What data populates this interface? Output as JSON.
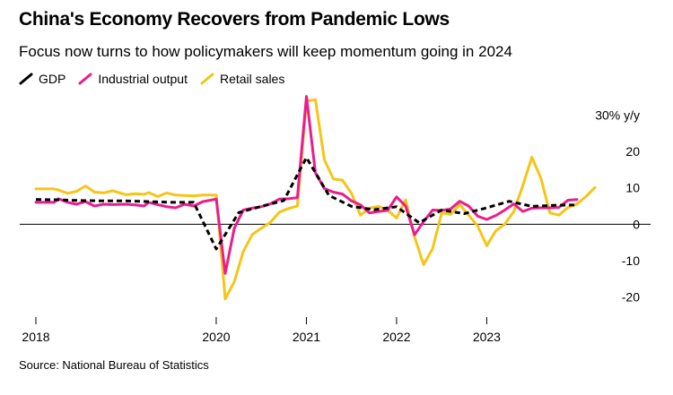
{
  "title": "China's Economy Recovers from Pandemic Lows",
  "subtitle": "Focus now turns to how policymakers will keep momentum going in 2024",
  "source": "Source: National Bureau of Statistics",
  "legend": [
    {
      "name": "GDP",
      "color": "#000000",
      "dashed": true
    },
    {
      "name": "Industrial output",
      "color": "#E91E8C",
      "dashed": false
    },
    {
      "name": "Retail sales",
      "color": "#F5C518",
      "dashed": false
    }
  ],
  "chart_data": {
    "type": "line",
    "xlabel": "",
    "ylabel": "% y/y",
    "ylim": [
      -25,
      35
    ],
    "xlim": [
      2018,
      2024.2
    ],
    "x_ticks": [
      {
        "value": 2018,
        "label": "2018"
      },
      {
        "value": 2020,
        "label": "2020"
      },
      {
        "value": 2021,
        "label": "2021"
      },
      {
        "value": 2022,
        "label": "2022"
      },
      {
        "value": 2023,
        "label": "2023"
      }
    ],
    "y_ticks": [
      {
        "value": 30,
        "label": "30% y/y"
      },
      {
        "value": 20,
        "label": "20"
      },
      {
        "value": 10,
        "label": "10"
      },
      {
        "value": 0,
        "label": "0"
      },
      {
        "value": -10,
        "label": "-10"
      },
      {
        "value": -20,
        "label": "-20"
      }
    ],
    "series": [
      {
        "name": "GDP",
        "color": "#000000",
        "style": "dashed",
        "points": [
          [
            2018.0,
            6.8
          ],
          [
            2018.25,
            6.7
          ],
          [
            2018.5,
            6.5
          ],
          [
            2018.75,
            6.4
          ],
          [
            2019.0,
            6.4
          ],
          [
            2019.25,
            6.2
          ],
          [
            2019.5,
            6.0
          ],
          [
            2019.75,
            6.0
          ],
          [
            2020.0,
            -6.8
          ],
          [
            2020.25,
            3.2
          ],
          [
            2020.5,
            4.9
          ],
          [
            2020.75,
            6.5
          ],
          [
            2021.0,
            18.3
          ],
          [
            2021.25,
            7.9
          ],
          [
            2021.5,
            4.9
          ],
          [
            2021.75,
            4.0
          ],
          [
            2022.0,
            4.8
          ],
          [
            2022.25,
            0.4
          ],
          [
            2022.5,
            3.9
          ],
          [
            2022.75,
            2.9
          ],
          [
            2023.0,
            4.5
          ],
          [
            2023.25,
            6.3
          ],
          [
            2023.5,
            4.9
          ],
          [
            2023.75,
            5.2
          ],
          [
            2024.0,
            5.3
          ]
        ]
      },
      {
        "name": "Industrial output",
        "color": "#E91E8C",
        "style": "solid",
        "points": [
          [
            2018.0,
            6.0
          ],
          [
            2018.1,
            6.0
          ],
          [
            2018.2,
            6.0
          ],
          [
            2018.25,
            7.0
          ],
          [
            2018.35,
            6.0
          ],
          [
            2018.45,
            5.5
          ],
          [
            2018.55,
            6.2
          ],
          [
            2018.65,
            5.0
          ],
          [
            2018.75,
            5.5
          ],
          [
            2018.85,
            5.4
          ],
          [
            2019.0,
            5.5
          ],
          [
            2019.1,
            5.3
          ],
          [
            2019.2,
            5.0
          ],
          [
            2019.25,
            6.0
          ],
          [
            2019.35,
            5.4
          ],
          [
            2019.45,
            4.8
          ],
          [
            2019.55,
            4.5
          ],
          [
            2019.65,
            5.5
          ],
          [
            2019.75,
            5.0
          ],
          [
            2019.85,
            6.2
          ],
          [
            2020.0,
            6.9
          ],
          [
            2020.1,
            -13.5
          ],
          [
            2020.2,
            -1.1
          ],
          [
            2020.3,
            3.9
          ],
          [
            2020.4,
            4.4
          ],
          [
            2020.5,
            4.8
          ],
          [
            2020.6,
            5.6
          ],
          [
            2020.7,
            6.9
          ],
          [
            2020.8,
            7.0
          ],
          [
            2020.9,
            7.3
          ],
          [
            2021.0,
            35.1
          ],
          [
            2021.1,
            14.1
          ],
          [
            2021.2,
            9.8
          ],
          [
            2021.3,
            8.8
          ],
          [
            2021.4,
            8.3
          ],
          [
            2021.5,
            6.4
          ],
          [
            2021.6,
            5.3
          ],
          [
            2021.7,
            3.1
          ],
          [
            2021.8,
            3.5
          ],
          [
            2021.9,
            3.8
          ],
          [
            2022.0,
            7.5
          ],
          [
            2022.1,
            5.0
          ],
          [
            2022.2,
            -2.9
          ],
          [
            2022.3,
            0.7
          ],
          [
            2022.4,
            3.9
          ],
          [
            2022.5,
            3.8
          ],
          [
            2022.6,
            4.2
          ],
          [
            2022.7,
            6.3
          ],
          [
            2022.8,
            5.0
          ],
          [
            2022.9,
            2.2
          ],
          [
            2023.0,
            1.3
          ],
          [
            2023.1,
            2.4
          ],
          [
            2023.2,
            3.9
          ],
          [
            2023.3,
            5.6
          ],
          [
            2023.4,
            3.5
          ],
          [
            2023.5,
            4.4
          ],
          [
            2023.6,
            4.5
          ],
          [
            2023.7,
            4.5
          ],
          [
            2023.8,
            4.6
          ],
          [
            2023.9,
            6.6
          ],
          [
            2024.0,
            6.8
          ]
        ]
      },
      {
        "name": "Retail sales",
        "color": "#F5C518",
        "style": "solid",
        "points": [
          [
            2018.0,
            9.7
          ],
          [
            2018.1,
            9.7
          ],
          [
            2018.2,
            9.7
          ],
          [
            2018.25,
            9.4
          ],
          [
            2018.35,
            8.5
          ],
          [
            2018.45,
            9.0
          ],
          [
            2018.55,
            10.5
          ],
          [
            2018.65,
            8.8
          ],
          [
            2018.75,
            8.6
          ],
          [
            2018.85,
            9.2
          ],
          [
            2019.0,
            8.1
          ],
          [
            2019.1,
            8.4
          ],
          [
            2019.2,
            8.2
          ],
          [
            2019.25,
            8.7
          ],
          [
            2019.35,
            7.6
          ],
          [
            2019.45,
            8.6
          ],
          [
            2019.55,
            8.0
          ],
          [
            2019.65,
            7.9
          ],
          [
            2019.75,
            7.8
          ],
          [
            2019.85,
            8.0
          ],
          [
            2020.0,
            8.0
          ],
          [
            2020.1,
            -20.5
          ],
          [
            2020.2,
            -15.8
          ],
          [
            2020.3,
            -7.5
          ],
          [
            2020.4,
            -2.8
          ],
          [
            2020.5,
            -1.1
          ],
          [
            2020.6,
            0.5
          ],
          [
            2020.7,
            3.3
          ],
          [
            2020.8,
            4.3
          ],
          [
            2020.9,
            5.0
          ],
          [
            2021.0,
            33.8
          ],
          [
            2021.1,
            34.2
          ],
          [
            2021.2,
            17.7
          ],
          [
            2021.3,
            12.4
          ],
          [
            2021.4,
            12.1
          ],
          [
            2021.5,
            8.5
          ],
          [
            2021.6,
            2.5
          ],
          [
            2021.7,
            4.4
          ],
          [
            2021.8,
            4.9
          ],
          [
            2021.9,
            3.9
          ],
          [
            2022.0,
            1.7
          ],
          [
            2022.1,
            6.7
          ],
          [
            2022.2,
            -3.5
          ],
          [
            2022.3,
            -11.1
          ],
          [
            2022.4,
            -6.7
          ],
          [
            2022.5,
            3.1
          ],
          [
            2022.6,
            2.7
          ],
          [
            2022.7,
            5.4
          ],
          [
            2022.8,
            2.5
          ],
          [
            2022.9,
            -0.5
          ],
          [
            2023.0,
            -5.9
          ],
          [
            2023.1,
            -1.8
          ],
          [
            2023.2,
            0.0
          ],
          [
            2023.3,
            3.5
          ],
          [
            2023.4,
            10.6
          ],
          [
            2023.5,
            18.4
          ],
          [
            2023.6,
            12.7
          ],
          [
            2023.7,
            3.1
          ],
          [
            2023.8,
            2.5
          ],
          [
            2023.9,
            4.6
          ],
          [
            2024.0,
            5.5
          ],
          [
            2024.1,
            7.6
          ],
          [
            2024.2,
            10.1
          ]
        ]
      }
    ],
    "grid": false,
    "legend_position": "top-left"
  }
}
